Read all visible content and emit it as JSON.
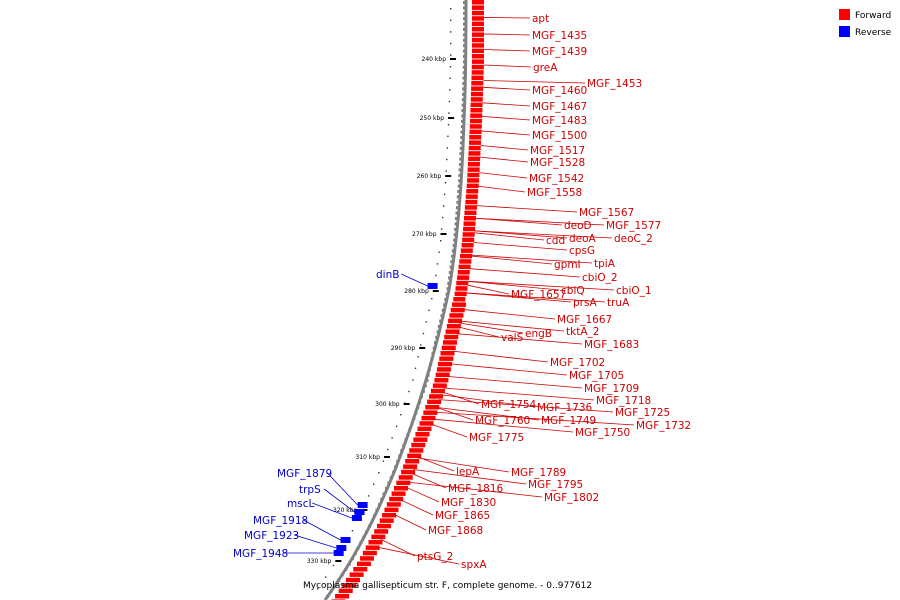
{
  "caption": "Mycoplasma gallisepticum str. F, complete genome. - 0..977612",
  "colors": {
    "forward": "#ff0000",
    "reverse": "#0000ff",
    "backbone": "#808080",
    "label": "#cc0000",
    "reverse_label": "#0000cc"
  },
  "legend": [
    {
      "label": "Forward",
      "color": "#ff0000"
    },
    {
      "label": "Reverse",
      "color": "#0000ff"
    }
  ],
  "ticks": [
    "240 kbp",
    "250 kbp",
    "260 kbp",
    "270 kbp",
    "280 kbp",
    "290 kbp",
    "300 kbp",
    "310 kbp",
    "320 kbp",
    "330 kbp"
  ],
  "forward_labels": [
    "apt",
    "MGF_1435",
    "MGF_1439",
    "greA",
    "MGF_1453",
    "MGF_1460",
    "MGF_1467",
    "MGF_1483",
    "MGF_1500",
    "MGF_1517",
    "MGF_1528",
    "MGF_1542",
    "MGF_1558",
    "MGF_1567",
    "deoD",
    "MGF_1577",
    "cdd",
    "deoA",
    "deoC_2",
    "cpsG",
    "gpmI",
    "tpiA",
    "cbiO_2",
    "cbiQ",
    "cbiO_1",
    "MGF_1657",
    "prsA",
    "truA",
    "MGF_1667",
    "tktA_2",
    "valS",
    "engB",
    "MGF_1683",
    "MGF_1702",
    "MGF_1705",
    "MGF_1709",
    "MGF_1718",
    "MGF_1725",
    "MGF_1732",
    "MGF_1736",
    "MGF_1754",
    "MGF_1749",
    "MGF_1760",
    "MGF_1750",
    "MGF_1775",
    "lepA",
    "MGF_1789",
    "MGF_1795",
    "MGF_1802",
    "MGF_1816",
    "MGF_1830",
    "MGF_1865",
    "MGF_1868",
    "ptsG_2",
    "spxA"
  ],
  "reverse_labels": [
    "dinB",
    "MGF_1879",
    "trpS",
    "mscL",
    "MGF_1918",
    "MGF_1923",
    "MGF_1948"
  ]
}
